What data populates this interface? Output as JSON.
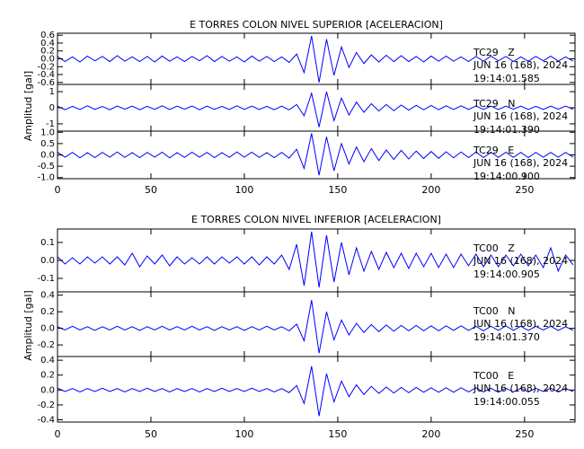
{
  "chart_data": [
    {
      "type": "line",
      "title": "E TORRES COLON NIVEL SUPERIOR [ACELERACION]",
      "ylabel": "Amplitud [gal]",
      "x": [
        0,
        4,
        8,
        12,
        16,
        20,
        24,
        28,
        32,
        36,
        40,
        44,
        48,
        52,
        56,
        60,
        64,
        68,
        72,
        76,
        80,
        84,
        88,
        92,
        96,
        100,
        104,
        108,
        112,
        116,
        120,
        124,
        128,
        132,
        136,
        140,
        144,
        148,
        152,
        156,
        160,
        164,
        168,
        172,
        176,
        180,
        184,
        188,
        192,
        196,
        200,
        204,
        208,
        212,
        216,
        220,
        224,
        228,
        232,
        236,
        240,
        244,
        248,
        252,
        256,
        260,
        264,
        268,
        272,
        276
      ],
      "xlim": [
        0,
        277
      ],
      "xticks": [
        0,
        50,
        100,
        150,
        200,
        250
      ],
      "panels": [
        {
          "station": "TC29   Z",
          "date": "JUN 16 (168), 2024",
          "time": "19:14:01.585",
          "color": "#0000ff",
          "ylim": [
            -0.65,
            0.65
          ],
          "yticks": [
            0.6,
            0.4,
            0.2,
            {
              "value": 0,
              "label": "0.0"
            },
            -0.2,
            -0.4,
            -0.6
          ],
          "values": [
            0.06,
            -0.07,
            0.05,
            -0.08,
            0.07,
            -0.05,
            0.06,
            -0.07,
            0.08,
            -0.06,
            0.05,
            -0.07,
            0.06,
            -0.08,
            0.07,
            -0.06,
            0.05,
            -0.07,
            0.06,
            -0.05,
            0.08,
            -0.07,
            0.06,
            -0.06,
            0.05,
            -0.08,
            0.07,
            -0.06,
            0.06,
            -0.07,
            0.05,
            -0.09,
            0.12,
            -0.35,
            0.58,
            -0.6,
            0.5,
            -0.42,
            0.3,
            -0.22,
            0.16,
            -0.12,
            0.1,
            -0.08,
            0.09,
            -0.07,
            0.08,
            -0.07,
            0.06,
            -0.08,
            0.07,
            -0.06,
            0.07,
            -0.06,
            0.05,
            -0.07,
            0.06,
            -0.06,
            0.07,
            -0.05,
            0.06,
            -0.07,
            0.05,
            -0.06,
            0.06,
            -0.05,
            0.07,
            -0.06,
            0.05,
            -0.06
          ]
        },
        {
          "station": "TC29   N",
          "date": "JUN 16 (168), 2024",
          "time": "19:14:01.390",
          "color": "#0000ff",
          "ylim": [
            -1.45,
            1.45
          ],
          "yticks": [
            1,
            0,
            -1
          ],
          "values": [
            0.1,
            -0.12,
            0.09,
            -0.11,
            0.12,
            -0.1,
            0.08,
            -0.12,
            0.11,
            -0.09,
            0.1,
            -0.12,
            0.09,
            -0.1,
            0.12,
            -0.11,
            0.1,
            -0.09,
            0.11,
            -0.12,
            0.1,
            -0.1,
            0.09,
            -0.11,
            0.12,
            -0.1,
            0.1,
            -0.11,
            0.09,
            -0.12,
            0.1,
            -0.13,
            0.2,
            -0.5,
            0.9,
            -1.2,
            1.0,
            -0.8,
            0.6,
            -0.45,
            0.35,
            -0.28,
            0.25,
            -0.2,
            0.2,
            -0.18,
            0.17,
            -0.15,
            0.15,
            -0.13,
            0.14,
            -0.12,
            0.12,
            -0.11,
            0.12,
            -0.1,
            0.11,
            -0.1,
            0.1,
            -0.11,
            0.1,
            -0.09,
            0.1,
            -0.1,
            0.09,
            -0.1,
            0.1,
            -0.09,
            0.1,
            -0.09
          ]
        },
        {
          "station": "TC29   E",
          "date": "JUN 16 (168), 2024",
          "time": "19:14:00.900",
          "color": "#0000ff",
          "ylim": [
            -1.05,
            1.05
          ],
          "yticks": [
            {
              "value": 1,
              "label": "1.0"
            },
            0.5,
            {
              "value": 0,
              "label": "0.0"
            },
            -0.5,
            {
              "value": -1,
              "label": "-1.0"
            }
          ],
          "values": [
            0.12,
            -0.1,
            0.11,
            -0.13,
            0.1,
            -0.12,
            0.11,
            -0.1,
            0.13,
            -0.11,
            0.1,
            -0.12,
            0.11,
            -0.1,
            0.12,
            -0.13,
            0.1,
            -0.11,
            0.12,
            -0.1,
            0.11,
            -0.12,
            0.1,
            -0.11,
            0.13,
            -0.1,
            0.12,
            -0.11,
            0.1,
            -0.12,
            0.11,
            -0.14,
            0.25,
            -0.6,
            0.95,
            -0.9,
            0.8,
            -0.7,
            0.5,
            -0.4,
            0.35,
            -0.3,
            0.28,
            -0.25,
            0.22,
            -0.2,
            0.2,
            -0.18,
            0.17,
            -0.16,
            0.15,
            -0.15,
            0.14,
            -0.13,
            0.13,
            -0.12,
            0.13,
            -0.12,
            0.12,
            -0.11,
            0.12,
            -0.11,
            0.11,
            -0.12,
            0.11,
            -0.1,
            0.11,
            -0.1,
            0.11,
            -0.1
          ]
        }
      ]
    },
    {
      "type": "line",
      "title": "E TORRES COLON NIVEL INFERIOR [ACELERACION]",
      "ylabel": "Amplitud [gal]",
      "x": [
        0,
        4,
        8,
        12,
        16,
        20,
        24,
        28,
        32,
        36,
        40,
        44,
        48,
        52,
        56,
        60,
        64,
        68,
        72,
        76,
        80,
        84,
        88,
        92,
        96,
        100,
        104,
        108,
        112,
        116,
        120,
        124,
        128,
        132,
        136,
        140,
        144,
        148,
        152,
        156,
        160,
        164,
        168,
        172,
        176,
        180,
        184,
        188,
        192,
        196,
        200,
        204,
        208,
        212,
        216,
        220,
        224,
        228,
        232,
        236,
        240,
        244,
        248,
        252,
        256,
        260,
        264,
        268,
        272,
        276
      ],
      "xlim": [
        0,
        277
      ],
      "xticks": [
        0,
        50,
        100,
        150,
        200,
        250
      ],
      "panels": [
        {
          "station": "TC00   Z",
          "date": "JUN 16 (168), 2024",
          "time": "19:14:00.905",
          "color": "#0000ff",
          "ylim": [
            -0.175,
            0.175
          ],
          "yticks": [
            0.1,
            {
              "value": 0,
              "label": "0.0"
            },
            -0.1
          ],
          "values": [
            0.02,
            -0.02,
            0.015,
            -0.02,
            0.02,
            -0.015,
            0.02,
            -0.02,
            0.02,
            -0.025,
            0.04,
            -0.035,
            0.025,
            -0.02,
            0.03,
            -0.03,
            0.02,
            -0.02,
            0.015,
            -0.02,
            0.02,
            -0.02,
            0.02,
            -0.015,
            0.02,
            -0.02,
            0.02,
            -0.025,
            0.02,
            -0.02,
            0.03,
            -0.05,
            0.09,
            -0.14,
            0.16,
            -0.15,
            0.14,
            -0.12,
            0.1,
            -0.08,
            0.07,
            -0.06,
            0.05,
            -0.05,
            0.045,
            -0.04,
            0.04,
            -0.045,
            0.04,
            -0.035,
            0.04,
            -0.04,
            0.035,
            -0.04,
            0.035,
            -0.03,
            0.035,
            -0.035,
            0.03,
            -0.035,
            0.03,
            -0.03,
            0.035,
            -0.03,
            0.03,
            -0.04,
            0.07,
            -0.06,
            0.03,
            -0.025
          ]
        },
        {
          "station": "TC00   N",
          "date": "JUN 16 (168), 2024",
          "time": "19:14:01.370",
          "color": "#0000ff",
          "ylim": [
            -0.34,
            0.44
          ],
          "yticks": [
            0.4,
            0.2,
            {
              "value": 0,
              "label": "0.0"
            },
            -0.2
          ],
          "values": [
            0.02,
            -0.02,
            0.025,
            -0.02,
            0.02,
            -0.025,
            0.02,
            -0.02,
            0.025,
            -0.02,
            0.02,
            -0.025,
            0.02,
            -0.02,
            0.025,
            -0.02,
            0.02,
            -0.02,
            0.025,
            -0.02,
            0.02,
            -0.025,
            0.02,
            -0.02,
            0.02,
            -0.025,
            0.02,
            -0.02,
            0.025,
            -0.02,
            0.02,
            -0.03,
            0.05,
            -0.15,
            0.34,
            -0.3,
            0.2,
            -0.14,
            0.1,
            -0.08,
            0.06,
            -0.05,
            0.045,
            -0.04,
            0.04,
            -0.035,
            0.035,
            -0.03,
            0.035,
            -0.03,
            0.03,
            -0.03,
            0.03,
            -0.025,
            0.03,
            -0.025,
            0.025,
            -0.03,
            0.025,
            -0.025,
            0.03,
            -0.025,
            0.025,
            -0.025,
            0.025,
            -0.02,
            0.025,
            -0.025,
            0.02,
            -0.025
          ]
        },
        {
          "station": "TC00   E",
          "date": "JUN 16 (168), 2024",
          "time": "19:14:00.055",
          "color": "#0000ff",
          "ylim": [
            -0.43,
            0.45
          ],
          "yticks": [
            0.4,
            0.2,
            {
              "value": 0,
              "label": "0.0"
            },
            -0.2,
            -0.4
          ],
          "values": [
            0.025,
            -0.02,
            0.02,
            -0.025,
            0.02,
            -0.02,
            0.025,
            -0.02,
            0.02,
            -0.025,
            0.02,
            -0.02,
            0.025,
            -0.02,
            0.02,
            -0.025,
            0.02,
            -0.02,
            0.02,
            -0.025,
            0.02,
            -0.02,
            0.025,
            -0.02,
            0.02,
            -0.02,
            0.025,
            -0.02,
            0.02,
            -0.025,
            0.02,
            -0.035,
            0.06,
            -0.18,
            0.32,
            -0.35,
            0.22,
            -0.16,
            0.12,
            -0.09,
            0.07,
            -0.06,
            0.05,
            -0.045,
            0.04,
            -0.04,
            0.035,
            -0.035,
            0.035,
            -0.03,
            0.03,
            -0.03,
            0.03,
            -0.03,
            0.03,
            -0.025,
            0.03,
            -0.025,
            0.025,
            -0.03,
            0.025,
            -0.025,
            0.025,
            -0.025,
            0.025,
            -0.02,
            0.025,
            -0.025,
            0.02,
            -0.02
          ]
        }
      ]
    }
  ]
}
